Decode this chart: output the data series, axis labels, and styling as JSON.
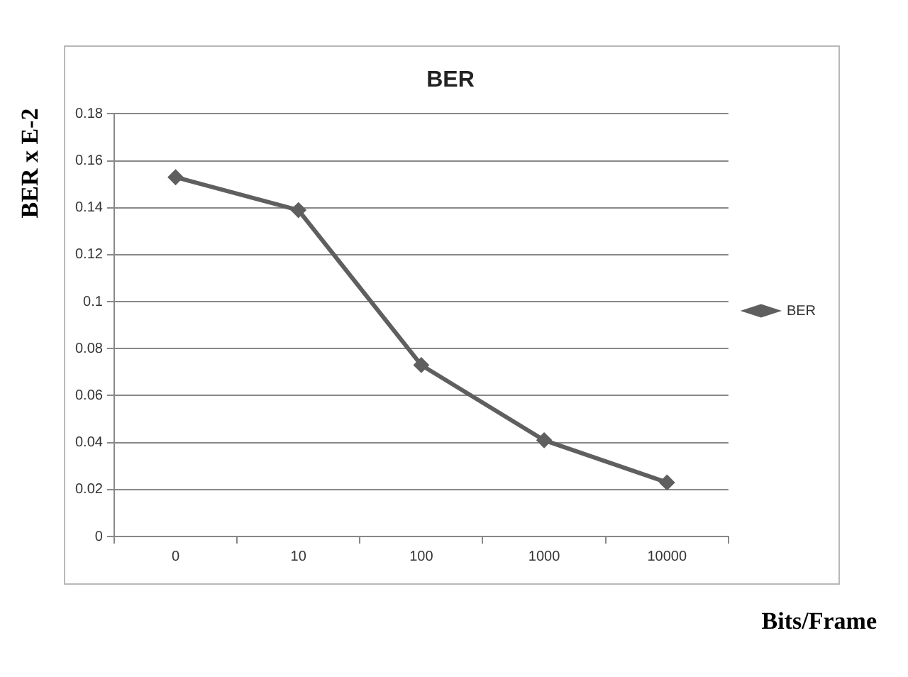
{
  "chart_data": {
    "type": "line",
    "title": "BER",
    "xlabel": "Bits/Frame",
    "ylabel": "BER x E-2",
    "categories": [
      "0",
      "10",
      "100",
      "1000",
      "10000"
    ],
    "series": [
      {
        "name": "BER",
        "color": "#5f5f5f",
        "values": [
          0.153,
          0.139,
          0.073,
          0.041,
          0.023
        ]
      }
    ],
    "ylim": [
      0,
      0.18
    ],
    "yticks": [
      0,
      0.02,
      0.04,
      0.06,
      0.08,
      0.1,
      0.12,
      0.14,
      0.16,
      0.18
    ],
    "grid": "y",
    "legend": "right",
    "marker": "diamond",
    "line_style": "solid"
  }
}
